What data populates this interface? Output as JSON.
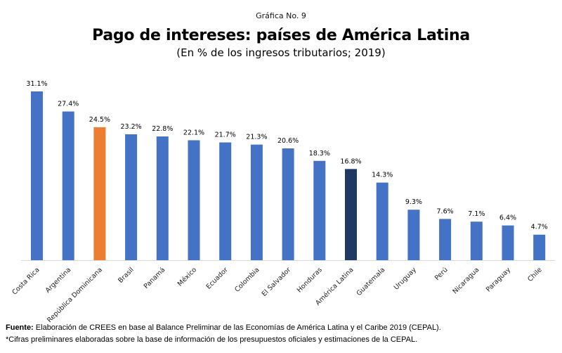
{
  "header": {
    "figure_number": "Gráfica No. 9"
  },
  "chart_data": {
    "type": "bar",
    "title": "Pago de intereses: países de América Latina",
    "subtitle": "(En % de los ingresos tributarios; 2019)",
    "xlabel": "",
    "ylabel": "",
    "ylim": [
      0,
      31.1
    ],
    "grid": false,
    "legend": "none",
    "categories": [
      "Costa Rica",
      "Argentina",
      "República Dominicana",
      "Brasil",
      "Panamá",
      "México",
      "Ecuador",
      "Colombia",
      "El Salvador",
      "Honduras",
      "América Latina",
      "Guatemala",
      "Uruguay",
      "Perú",
      "Nicaragua",
      "Paraguay",
      "Chile"
    ],
    "values": [
      31.1,
      27.4,
      24.5,
      23.2,
      22.8,
      22.1,
      21.7,
      21.3,
      20.6,
      18.3,
      16.8,
      14.3,
      9.3,
      7.6,
      7.1,
      6.4,
      4.7
    ],
    "data_labels": [
      "31.1%",
      "27.4%",
      "24.5%",
      "23.2%",
      "22.8%",
      "22.1%",
      "21.7%",
      "21.3%",
      "20.6%",
      "18.3%",
      "16.8%",
      "14.3%",
      "9.3%",
      "7.6%",
      "7.1%",
      "6.4%",
      "4.7%"
    ],
    "colors": {
      "default": "#4472c4",
      "highlight": "#ed7d31",
      "aggregate": "#203864"
    },
    "highlight_category": "República Dominicana",
    "aggregate_category": "América Latina"
  },
  "footer": {
    "source_label": "Fuente:",
    "source_text": " Elaboración de CREES en base al Balance Preliminar de las Economías de América Latina y el Caribe 2019 (CEPAL).",
    "note": "*Cifras preliminares elaboradas sobre la base de información de los presupuestos oficiales y estimaciones de la CEPAL."
  }
}
